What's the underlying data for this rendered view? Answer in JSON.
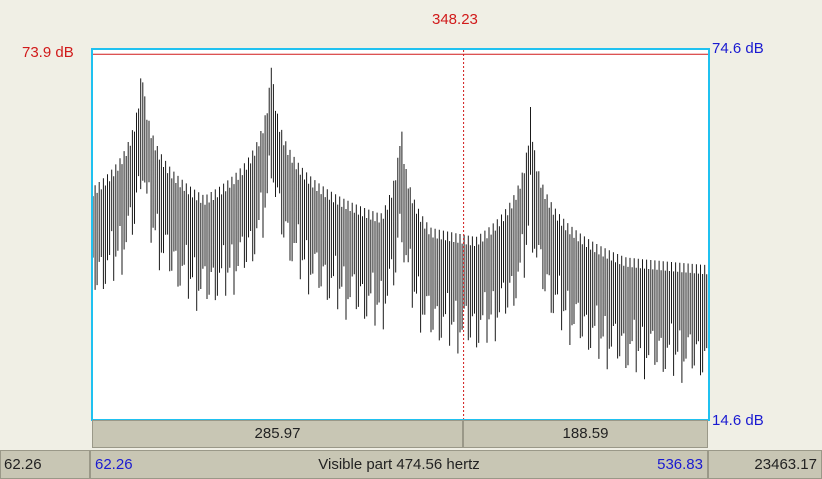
{
  "cursor": {
    "frequency_label": "348.23",
    "color": "#d11a1a"
  },
  "amplitude": {
    "cursor_db_label": "73.9 dB",
    "max_db_label": "74.6 dB",
    "min_db_label": "14.6 dB"
  },
  "selection": {
    "left_width_label": "285.97",
    "right_width_label": "188.59"
  },
  "window": {
    "total_start": "62.26",
    "visible_start": "62.26",
    "visible_label": "Visible part 474.56 hertz",
    "visible_end": "536.83",
    "total_end": "23463.17"
  },
  "colors": {
    "frame": "#1fc1f0",
    "trace": "#1a1a1a",
    "bar": "#c8c6b4"
  },
  "chart_data": {
    "type": "line",
    "title": "",
    "xlabel": "",
    "ylabel": "",
    "xlim": [
      62.26,
      536.83
    ],
    "ylim": [
      14.6,
      74.6
    ],
    "cursor_x": 348.23,
    "cursor_y": 73.9,
    "peaks": [
      {
        "x": 100.0,
        "y": 73.5
      },
      {
        "x": 200.0,
        "y": 73.9
      },
      {
        "x": 300.0,
        "y": 64.0
      },
      {
        "x": 400.0,
        "y": 66.0
      }
    ],
    "floor_db": 28.0
  }
}
